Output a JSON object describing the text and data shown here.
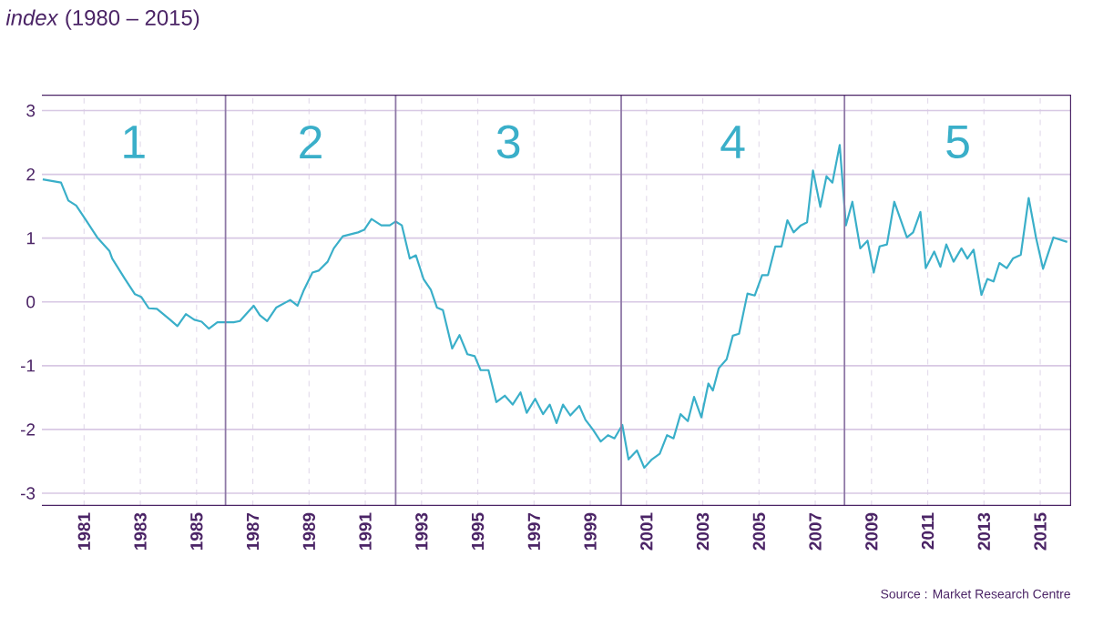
{
  "chart_data": {
    "type": "line",
    "title": "*index* (1980 – 2015)",
    "x": [
      1979.53,
      1980.18,
      1980.44,
      1980.72,
      1981.04,
      1981.47,
      1981.9,
      1982.0,
      1982.44,
      1982.81,
      1983.03,
      1983.3,
      1983.59,
      1984.06,
      1984.32,
      1984.62,
      1984.92,
      1985.18,
      1985.44,
      1985.74,
      1986.32,
      1986.54,
      1987.03,
      1987.25,
      1987.51,
      1987.83,
      1988.33,
      1988.59,
      1988.8,
      1989.12,
      1989.34,
      1989.66,
      1989.88,
      1990.2,
      1990.74,
      1990.96,
      1991.22,
      1991.57,
      1991.87,
      1992.08,
      1992.3,
      1992.58,
      1992.8,
      1993.07,
      1993.33,
      1993.55,
      1993.76,
      1994.09,
      1994.35,
      1994.63,
      1994.89,
      1995.1,
      1995.38,
      1995.66,
      1995.96,
      1996.24,
      1996.52,
      1996.74,
      1997.04,
      1997.32,
      1997.56,
      1997.8,
      1998.03,
      1998.29,
      1998.61,
      1998.83,
      1999.09,
      1999.37,
      1999.63,
      1999.86,
      2000.14,
      2000.36,
      2000.66,
      2000.92,
      2001.19,
      2001.47,
      2001.73,
      2001.96,
      2002.21,
      2002.47,
      2002.69,
      2002.95,
      2003.2,
      2003.36,
      2003.57,
      2003.85,
      2004.07,
      2004.29,
      2004.59,
      2004.85,
      2005.11,
      2005.32,
      2005.58,
      2005.8,
      2006.01,
      2006.23,
      2006.49,
      2006.71,
      2006.92,
      2007.18,
      2007.4,
      2007.61,
      2007.87,
      2008.09,
      2008.32,
      2008.6,
      2008.86,
      2009.08,
      2009.29,
      2009.55,
      2009.81,
      2010.26,
      2010.48,
      2010.74,
      2010.93,
      2011.23,
      2011.45,
      2011.66,
      2011.92,
      2012.2,
      2012.41,
      2012.63,
      2012.91,
      2013.12,
      2013.34,
      2013.55,
      2013.81,
      2014.03,
      2014.31,
      2014.59,
      2014.85,
      2015.1,
      2015.47,
      2015.96
    ],
    "values": [
      1.92,
      1.87,
      1.59,
      1.51,
      1.3,
      1.01,
      0.8,
      0.68,
      0.37,
      0.12,
      0.08,
      -0.1,
      -0.11,
      -0.28,
      -0.38,
      -0.19,
      -0.28,
      -0.31,
      -0.42,
      -0.32,
      -0.32,
      -0.3,
      -0.06,
      -0.21,
      -0.3,
      -0.09,
      0.03,
      -0.06,
      0.17,
      0.46,
      0.49,
      0.63,
      0.84,
      1.03,
      1.09,
      1.13,
      1.3,
      1.2,
      1.2,
      1.26,
      1.2,
      0.68,
      0.73,
      0.36,
      0.19,
      -0.09,
      -0.13,
      -0.73,
      -0.52,
      -0.82,
      -0.85,
      -1.07,
      -1.07,
      -1.57,
      -1.47,
      -1.61,
      -1.42,
      -1.74,
      -1.52,
      -1.76,
      -1.61,
      -1.9,
      -1.61,
      -1.78,
      -1.63,
      -1.85,
      -2.0,
      -2.19,
      -2.09,
      -2.14,
      -1.93,
      -2.47,
      -2.33,
      -2.6,
      -2.47,
      -2.38,
      -2.09,
      -2.14,
      -1.76,
      -1.87,
      -1.49,
      -1.81,
      -1.28,
      -1.39,
      -1.04,
      -0.9,
      -0.53,
      -0.5,
      0.13,
      0.1,
      0.42,
      0.42,
      0.87,
      0.87,
      1.28,
      1.09,
      1.2,
      1.25,
      2.06,
      1.49,
      1.97,
      1.87,
      2.46,
      1.2,
      1.57,
      0.84,
      0.96,
      0.46,
      0.87,
      0.9,
      1.57,
      1.01,
      1.09,
      1.41,
      0.53,
      0.79,
      0.55,
      0.9,
      0.63,
      0.84,
      0.68,
      0.82,
      0.11,
      0.36,
      0.32,
      0.61,
      0.53,
      0.68,
      0.74,
      1.63,
      1.01,
      0.52,
      1.01,
      0.94
    ],
    "color": "#3aafc9",
    "xlim": [
      1979.5,
      2016.1
    ],
    "ylim": [
      -3.2,
      3.25
    ],
    "xticks": [
      1981,
      1983,
      1985,
      1987,
      1989,
      1991,
      1993,
      1995,
      1997,
      1999,
      2001,
      2003,
      2005,
      2007,
      2009,
      2011,
      2013,
      2015
    ],
    "yticks": [
      -3,
      -2,
      -1,
      0,
      1,
      2,
      3
    ],
    "grid": true,
    "ref_lines": [
      {
        "axis": "x",
        "value": 1986.03,
        "color": "#8e78a6"
      },
      {
        "axis": "x",
        "value": 1992.08,
        "color": "#8e78a6"
      },
      {
        "axis": "x",
        "value": 2000.1,
        "color": "#8e78a6"
      },
      {
        "axis": "x",
        "value": 2008.04,
        "color": "#8e78a6"
      }
    ],
    "annotations": [
      "1",
      "2",
      "3",
      "4",
      "5",
      "Source : Market Research Centre"
    ]
  }
}
